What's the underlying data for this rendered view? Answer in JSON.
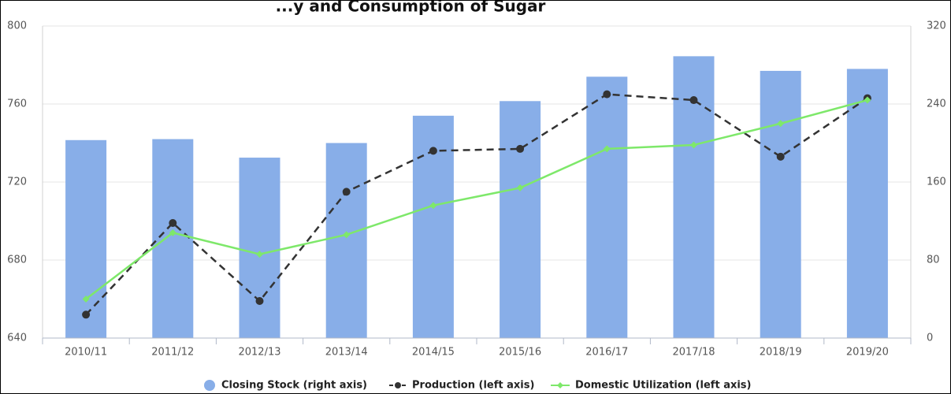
{
  "chart_data": {
    "title": "...y and Consumption of Sugar",
    "categories": [
      "2010/11",
      "2011/12",
      "2012/13",
      "2013/14",
      "2014/15",
      "2015/16",
      "2016/17",
      "2017/18",
      "2018/19",
      "2019/20"
    ],
    "left_axis": {
      "min": 640,
      "max": 800,
      "ticks": [
        "640",
        "680",
        "720",
        "760",
        "800"
      ]
    },
    "right_axis": {
      "min": 0,
      "max": 320,
      "ticks": [
        "0",
        "80",
        "160",
        "240",
        "320"
      ]
    },
    "series": [
      {
        "name": "Closing Stock (right axis)",
        "type": "bar",
        "axis": "right",
        "color": "#88aee8",
        "values": [
          203,
          204,
          185,
          200,
          228,
          243,
          268,
          289,
          274,
          276
        ]
      },
      {
        "name": "Production (left axis)",
        "type": "line",
        "axis": "left",
        "color": "#333333",
        "dashed": true,
        "values": [
          652,
          699,
          659,
          715,
          736,
          737,
          765,
          762,
          733,
          763
        ]
      },
      {
        "name": "Domestic Utilization (left axis)",
        "type": "line",
        "axis": "left",
        "color": "#7ee86a",
        "dashed": false,
        "values": [
          660,
          694,
          683,
          693,
          708,
          717,
          737,
          739,
          750,
          762
        ]
      }
    ],
    "grid": true,
    "legend_position": "bottom-center"
  }
}
